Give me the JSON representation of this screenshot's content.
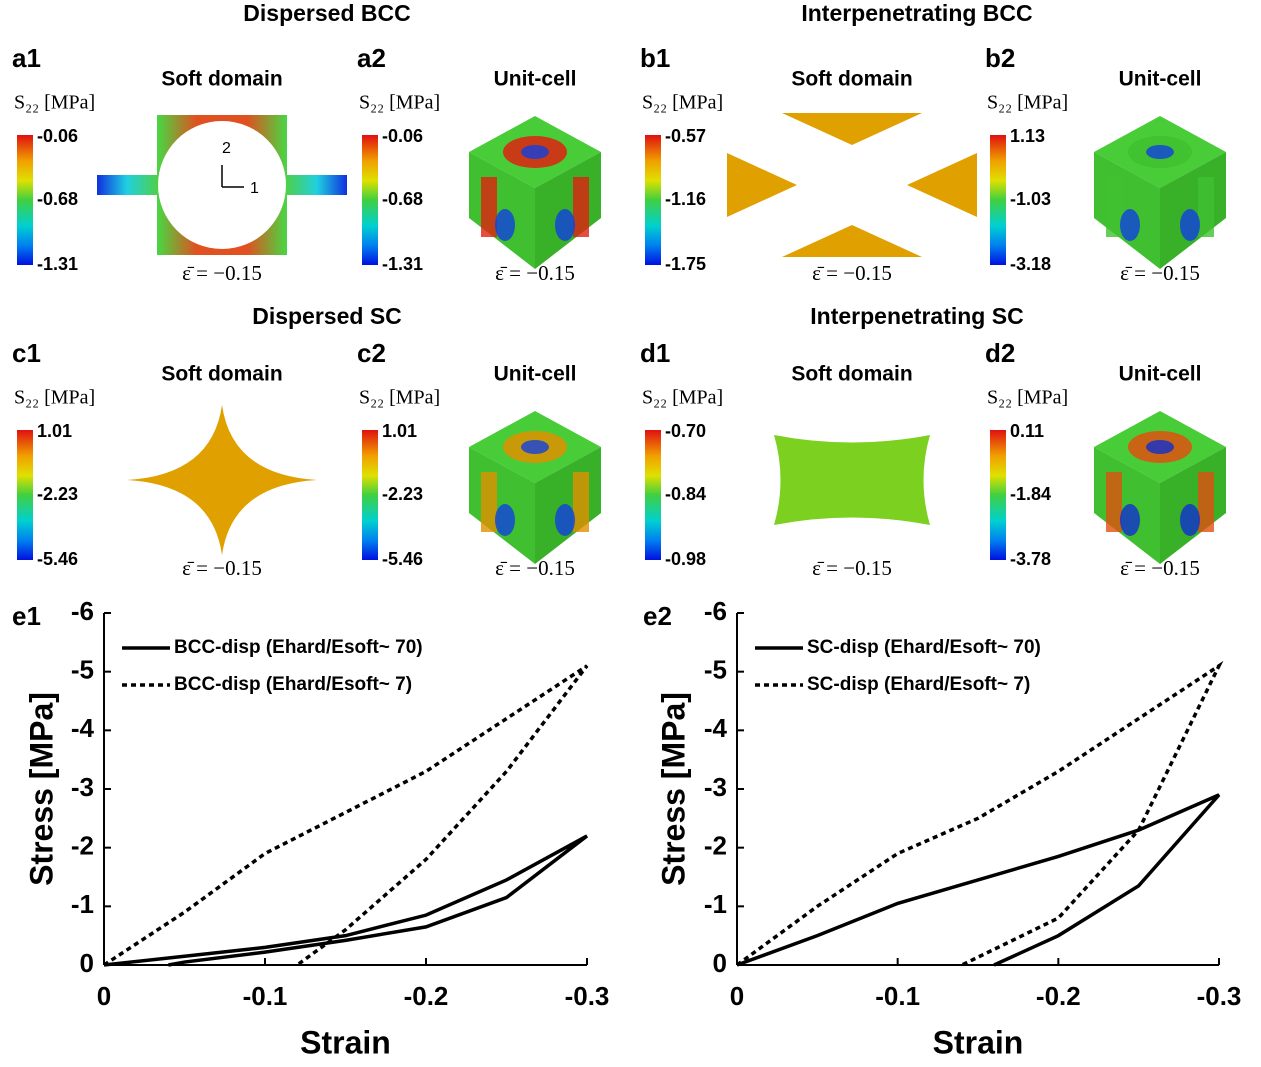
{
  "panels": {
    "row_titles": [
      "Dispersed BCC",
      "Interpenetrating BCC",
      "Dispersed SC",
      "Interpenetrating SC"
    ],
    "items": [
      {
        "label": "a1",
        "title": "Soft domain",
        "scale_label": "S₂₂ [MPa]",
        "ticks": [
          "-0.06",
          "-0.68",
          "-1.31"
        ],
        "strain": "ε̄ = −0.15"
      },
      {
        "label": "a2",
        "title": "Unit-cell",
        "scale_label": "S₂₂ [MPa]",
        "ticks": [
          "-0.06",
          "-0.68",
          "-1.31"
        ],
        "strain": "ε̄ = −0.15"
      },
      {
        "label": "b1",
        "title": "Soft domain",
        "scale_label": "S₂₂ [MPa]",
        "ticks": [
          "-0.57",
          "-1.16",
          "-1.75"
        ],
        "strain": "ε̄ = −0.15"
      },
      {
        "label": "b2",
        "title": "Unit-cell",
        "scale_label": "S₂₂ [MPa]",
        "ticks": [
          "1.13",
          "-1.03",
          "-3.18"
        ],
        "strain": "ε̄ = −0.15"
      },
      {
        "label": "c1",
        "title": "Soft domain",
        "scale_label": "S₂₂ [MPa]",
        "ticks": [
          "1.01",
          "-2.23",
          "-5.46"
        ],
        "strain": "ε̄ = −0.15"
      },
      {
        "label": "c2",
        "title": "Unit-cell",
        "scale_label": "S₂₂ [MPa]",
        "ticks": [
          "1.01",
          "-2.23",
          "-5.46"
        ],
        "strain": "ε̄ = −0.15"
      },
      {
        "label": "d1",
        "title": "Soft domain",
        "scale_label": "S₂₂ [MPa]",
        "ticks": [
          "-0.70",
          "-0.84",
          "-0.98"
        ],
        "strain": "ε̄ = −0.15"
      },
      {
        "label": "d2",
        "title": "Unit-cell",
        "scale_label": "S₂₂ [MPa]",
        "ticks": [
          "0.11",
          "-1.84",
          "-3.78"
        ],
        "strain": "ε̄ = −0.15"
      }
    ],
    "axis_marks": [
      "2",
      "1"
    ]
  },
  "chart_data": [
    {
      "type": "line",
      "panel_label": "e1",
      "xlabel": "Strain",
      "ylabel": "Stress [MPa]",
      "xlim": [
        0,
        -0.3
      ],
      "xticks": [
        0,
        -0.1,
        -0.2,
        -0.3
      ],
      "ylim": [
        0,
        -6
      ],
      "yticks": [
        0,
        -1,
        -2,
        -3,
        -4,
        -5,
        -6
      ],
      "legend": "upper left",
      "series": [
        {
          "name": "BCC-disp (Ehard/Esoft~ 70)",
          "color": "#000000",
          "style": "solid",
          "x": [
            0,
            -0.05,
            -0.1,
            -0.15,
            -0.2,
            -0.25,
            -0.3,
            -0.25,
            -0.2,
            -0.15,
            -0.1,
            -0.05,
            -0.04
          ],
          "values": [
            0,
            -0.15,
            -0.3,
            -0.5,
            -0.85,
            -1.45,
            -2.2,
            -1.15,
            -0.65,
            -0.42,
            -0.22,
            -0.05,
            0
          ]
        },
        {
          "name": "BCC-disp (Ehard/Esoft~ 7)",
          "color": "#000000",
          "style": "dotted",
          "x": [
            0,
            -0.05,
            -0.1,
            -0.15,
            -0.2,
            -0.25,
            -0.3,
            -0.25,
            -0.2,
            -0.15,
            -0.12
          ],
          "values": [
            0,
            -0.9,
            -1.9,
            -2.6,
            -3.3,
            -4.2,
            -5.1,
            -3.3,
            -1.8,
            -0.6,
            0
          ]
        }
      ]
    },
    {
      "type": "line",
      "panel_label": "e2",
      "xlabel": "Strain",
      "ylabel": "Stress [MPa]",
      "xlim": [
        0,
        -0.3
      ],
      "xticks": [
        0,
        -0.1,
        -0.2,
        -0.3
      ],
      "ylim": [
        0,
        -6
      ],
      "yticks": [
        0,
        -1,
        -2,
        -3,
        -4,
        -5,
        -6
      ],
      "legend": "upper left",
      "series": [
        {
          "name": "SC-disp (Ehard/Esoft~ 70)",
          "color": "#000000",
          "style": "solid",
          "x": [
            0,
            -0.05,
            -0.1,
            -0.15,
            -0.2,
            -0.25,
            -0.3,
            -0.25,
            -0.2,
            -0.16
          ],
          "values": [
            0,
            -0.5,
            -1.05,
            -1.45,
            -1.85,
            -2.3,
            -2.9,
            -1.35,
            -0.5,
            0
          ]
        },
        {
          "name": "SC-disp (Ehard/Esoft~ 7)",
          "color": "#000000",
          "style": "dotted",
          "x": [
            0,
            -0.05,
            -0.1,
            -0.15,
            -0.2,
            -0.25,
            -0.3,
            -0.25,
            -0.2,
            -0.14
          ],
          "values": [
            0,
            -1.0,
            -1.9,
            -2.5,
            -3.3,
            -4.2,
            -5.1,
            -2.3,
            -0.8,
            0
          ]
        }
      ]
    }
  ]
}
